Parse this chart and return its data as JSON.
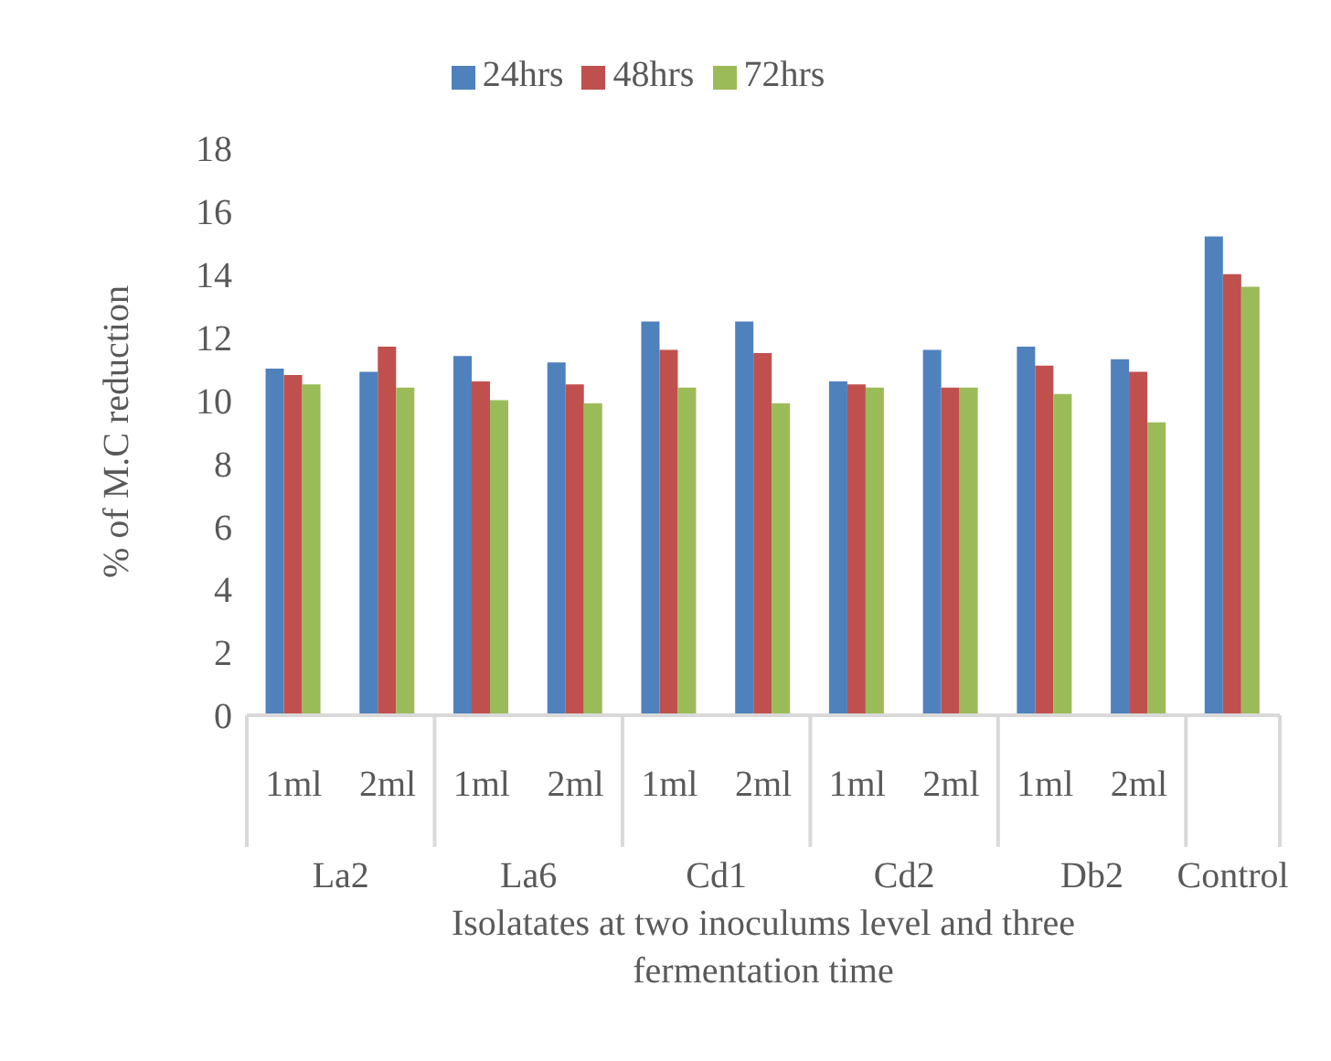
{
  "chart_data": {
    "type": "bar",
    "xlabel": "Isolatates  at two inoculums level and three fermentation time",
    "ylabel": "% of M.C reduction",
    "categories": [
      "1ml",
      "2ml",
      "1ml",
      "2ml",
      "1ml",
      "2ml",
      "1ml",
      "2ml",
      "1ml",
      "2ml",
      null
    ],
    "annotations": [
      "La2",
      "La6",
      "Cd1",
      "Cd2",
      "Db2",
      "Control"
    ],
    "series": [
      {
        "name": "24hrs",
        "color": "#4f81bd",
        "values": [
          11.0,
          10.9,
          11.4,
          11.2,
          12.5,
          12.5,
          10.6,
          11.6,
          11.7,
          11.3,
          15.2
        ]
      },
      {
        "name": "48hrs",
        "color": "#c0504d",
        "values": [
          10.8,
          11.7,
          10.6,
          10.5,
          11.6,
          11.5,
          10.5,
          10.4,
          11.1,
          10.9,
          14.0
        ]
      },
      {
        "name": "72hrs",
        "color": "#9bbb59",
        "values": [
          10.5,
          10.4,
          10.0,
          9.9,
          10.4,
          9.9,
          10.4,
          10.4,
          10.2,
          9.3,
          13.6
        ]
      }
    ],
    "ylim": [
      0,
      18
    ],
    "yticks": [
      0,
      2,
      4,
      6,
      8,
      10,
      12,
      14,
      16,
      18
    ],
    "grid": false,
    "legend": "top"
  }
}
